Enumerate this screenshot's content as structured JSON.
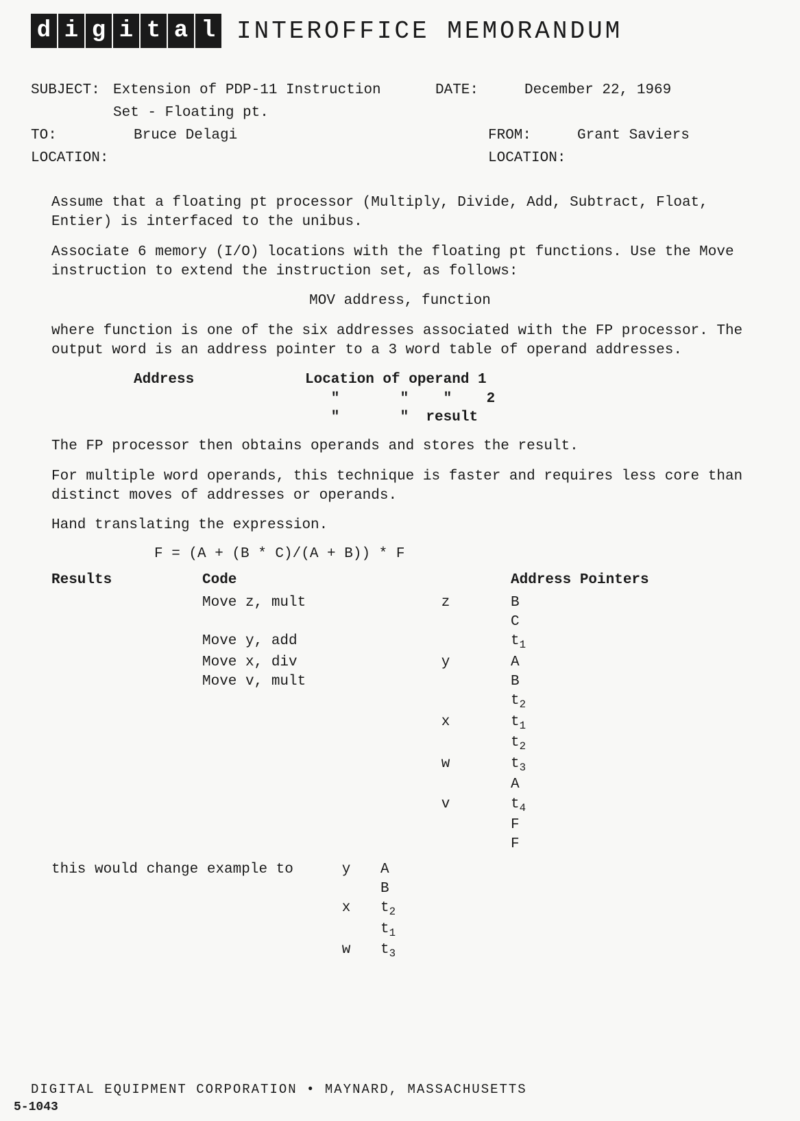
{
  "logo_letters": [
    "d",
    "i",
    "g",
    "i",
    "t",
    "a",
    "l"
  ],
  "header_title": "INTEROFFICE MEMORANDUM",
  "fields": {
    "subject_label": "SUBJECT:",
    "subject_value": "Extension of PDP-11 Instruction Set - Floating pt.",
    "date_label": "DATE:",
    "date_value": "December 22, 1969",
    "to_label": "TO:",
    "to_value": "Bruce Delagi",
    "from_label": "FROM:",
    "from_value": "Grant Saviers",
    "location_label_left": "LOCATION:",
    "location_value_left": "",
    "location_label_right": "LOCATION:",
    "location_value_right": ""
  },
  "paragraphs": {
    "p1": "Assume that a floating pt processor (Multiply, Divide, Add, Subtract, Float, Entier) is interfaced to the unibus.",
    "p2": "Associate 6 memory (I/O) locations with the floating pt functions. Use the Move instruction to extend the instruction set, as follows:",
    "mov_line": "MOV  address, function",
    "p3": "where function is one of the six addresses associated with the FP processor.  The output word is an address pointer to a 3 word table of operand addresses.",
    "p4": "The FP processor then obtains operands and stores the result.",
    "p5": "For multiple word operands, this technique is faster and requires less core than distinct moves of addresses or operands.",
    "p6": "Hand translating the expression.",
    "expression": "F = (A + (B * C)/(A + B)) * F",
    "change_text": "this would change example to"
  },
  "address_table": {
    "col1_header": "Address",
    "rows": [
      {
        "col2": "Location of operand 1"
      },
      {
        "col2": "   \"       \"    \"    2"
      },
      {
        "col2": "   \"       \"  result"
      }
    ]
  },
  "results_table": {
    "headers": {
      "col1": "Results",
      "col2": "Code",
      "col4": "Address Pointers"
    },
    "rows": [
      {
        "col1": "",
        "col2": "Move z, mult",
        "col3": "z",
        "col4": "B"
      },
      {
        "col1": "",
        "col2": "",
        "col3": "",
        "col4": "C"
      },
      {
        "col1": "",
        "col2": "Move y, add",
        "col3": "",
        "col4": "t",
        "col4_sub": "1"
      },
      {
        "col1": "",
        "col2": "Move x, div",
        "col3": "y",
        "col4": "A"
      },
      {
        "col1": "",
        "col2": "Move v, mult",
        "col3": "",
        "col4": "B"
      },
      {
        "col1": "",
        "col2": "",
        "col3": "",
        "col4": "t",
        "col4_sub": "2"
      },
      {
        "col1": "",
        "col2": "",
        "col3": "x",
        "col4": "t",
        "col4_sub": "1"
      },
      {
        "col1": "",
        "col2": "",
        "col3": "",
        "col4": "t",
        "col4_sub": "2"
      },
      {
        "col1": "",
        "col2": "",
        "col3": "w",
        "col4": "t",
        "col4_sub": "3"
      },
      {
        "col1": "",
        "col2": "",
        "col3": "",
        "col4": "A"
      },
      {
        "col1": "",
        "col2": "",
        "col3": "v",
        "col4": "t",
        "col4_sub": "4"
      },
      {
        "col1": "",
        "col2": "",
        "col3": "",
        "col4": "F"
      },
      {
        "col1": "",
        "col2": "",
        "col3": "",
        "col4": "F"
      }
    ],
    "change_rows": [
      {
        "col3": "y",
        "col4": "A"
      },
      {
        "col3": "",
        "col4": "B"
      },
      {
        "col3": "x",
        "col4": "t",
        "col4_sub": "2"
      },
      {
        "col3": "",
        "col4": "t",
        "col4_sub": "1"
      },
      {
        "col3": "w",
        "col4": "t",
        "col4_sub": "3"
      }
    ]
  },
  "footer_text": "DIGITAL EQUIPMENT CORPORATION • MAYNARD, MASSACHUSETTS",
  "form_number": "5-1043",
  "styling": {
    "background_color": "#f8f8f6",
    "text_color": "#1a1a1a",
    "logo_bg": "#1a1a1a",
    "logo_fg": "#ffffff",
    "body_font": "Courier New",
    "body_fontsize": 21,
    "header_fontsize": 36,
    "logo_block_width": 38,
    "logo_block_height": 50
  }
}
